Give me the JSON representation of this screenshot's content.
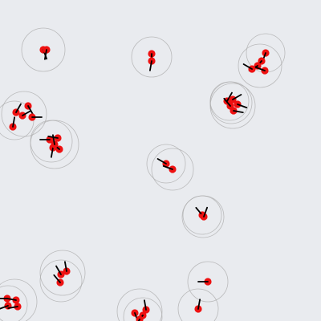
{
  "colors": {
    "background": "#e9ebef",
    "agent": "#ee1111",
    "heading": "#000000",
    "ring": "#aaaaaa"
  }
}
